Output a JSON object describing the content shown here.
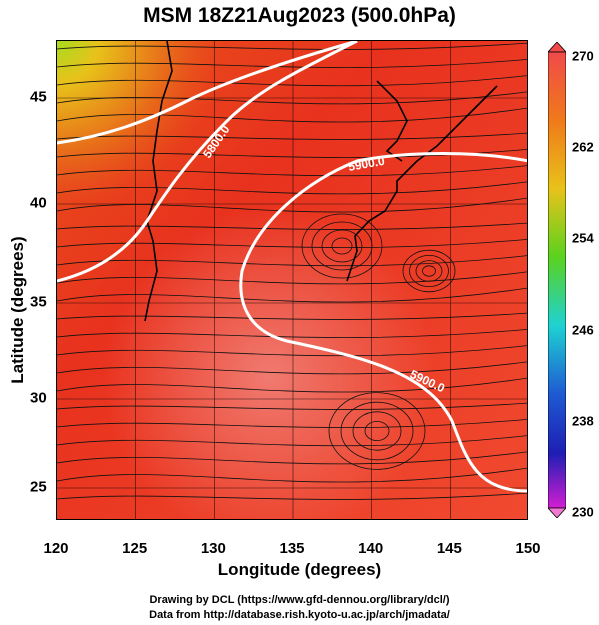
{
  "title": "MSM 18Z21Aug2023 (500.0hPa)",
  "map": {
    "x_axis_label": "Longitude (degrees)",
    "y_axis_label": "Latitude  (degrees)",
    "x_ticks": [
      "120",
      "125",
      "130",
      "135",
      "140",
      "145",
      "150"
    ],
    "y_ticks": [
      "45",
      "40",
      "35",
      "30",
      "25"
    ],
    "contour_labels": [
      "5800.0",
      "5900.0",
      "5900.0"
    ],
    "colorbar_ticks": [
      "270",
      "262",
      "254",
      "246",
      "238",
      "230"
    ],
    "colors": {
      "warm": "#e8321e",
      "hot": "#f06a5a",
      "cool": "#8ad21e"
    }
  },
  "footer": {
    "line1": "Drawing by DCL (https://www.gfd-dennou.org/library/dcl/)",
    "line2": "Data from http://database.rish.kyoto-u.ac.jp/arch/jmadata/"
  }
}
